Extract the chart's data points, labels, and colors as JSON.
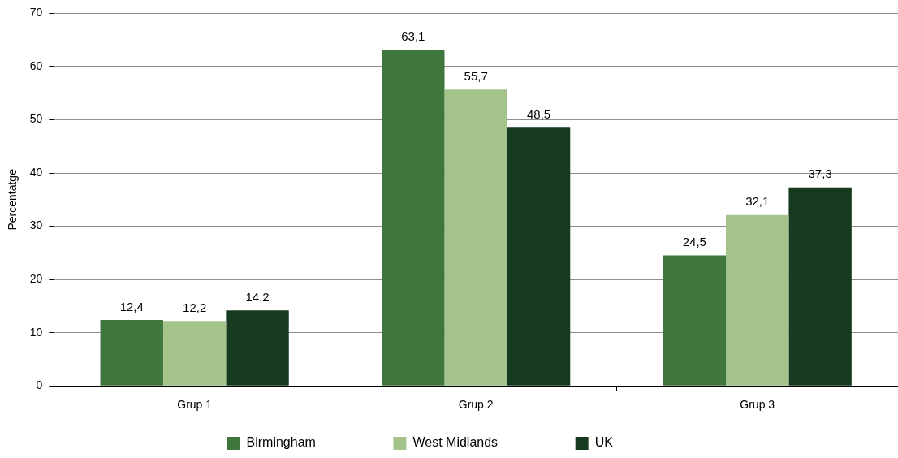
{
  "chart_data": {
    "type": "bar",
    "ylabel": "Percentatge",
    "categories": [
      "Grup 1",
      "Grup 2",
      "Grup 3"
    ],
    "series": [
      {
        "name": "Birmingham",
        "color": "#3f763b",
        "values": [
          12.4,
          63.1,
          24.5
        ],
        "value_labels": [
          "12,4",
          "63,1",
          "24,5"
        ]
      },
      {
        "name": "West Midlands",
        "color": "#a3c38a",
        "values": [
          12.2,
          55.7,
          32.1
        ],
        "value_labels": [
          "12,2",
          "55,7",
          "32,1"
        ]
      },
      {
        "name": "UK",
        "color": "#153a1d",
        "values": [
          14.2,
          48.5,
          37.3
        ],
        "value_labels": [
          "14,2",
          "48,5",
          "37,3"
        ]
      }
    ],
    "ylim": [
      0,
      70
    ],
    "yticks": [
      0,
      10,
      20,
      30,
      40,
      50,
      60,
      70
    ],
    "grid": "y",
    "legend": "bottom"
  }
}
